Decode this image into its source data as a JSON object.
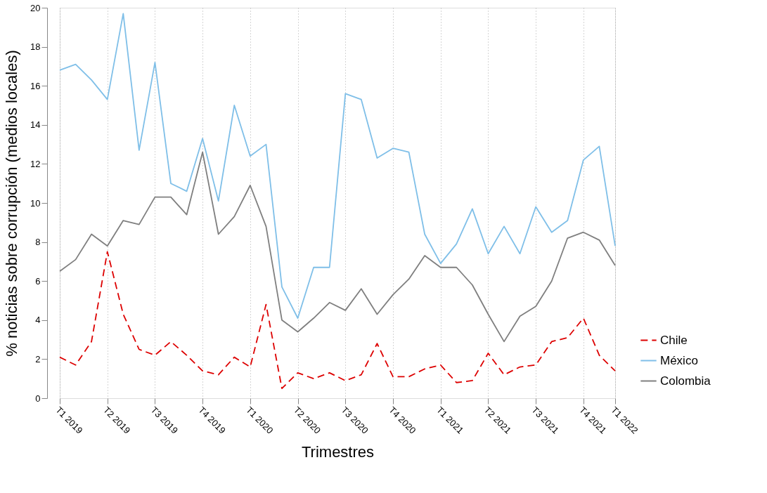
{
  "chart_data": {
    "type": "line",
    "xlabel": "Trimestres",
    "ylabel": "% noticias sobre corrupción (medios locales)",
    "categories": [
      "T1 2019",
      null,
      null,
      "T2 2019",
      null,
      null,
      "T3 2019",
      null,
      null,
      "T4 2019",
      null,
      null,
      "T1 2020",
      null,
      null,
      "T2 2020",
      null,
      null,
      "T3 2020",
      null,
      null,
      "T4 2020",
      null,
      null,
      "T1 2021",
      null,
      null,
      "T2 2021",
      null,
      null,
      "T3 2021",
      null,
      null,
      "T4 2021",
      null,
      "T1 2022"
    ],
    "series": [
      {
        "name": "Chile",
        "color": "#dd0000",
        "line_style": "dashed",
        "values": [
          2.1,
          1.7,
          2.9,
          7.5,
          4.3,
          2.5,
          2.2,
          2.9,
          2.2,
          1.4,
          1.2,
          2.1,
          1.6,
          4.8,
          0.5,
          1.3,
          1.0,
          1.3,
          0.9,
          1.2,
          2.8,
          1.1,
          1.1,
          1.5,
          1.7,
          0.8,
          0.9,
          2.3,
          1.2,
          1.6,
          1.7,
          2.9,
          3.1,
          4.1,
          2.2,
          1.4
        ]
      },
      {
        "name": "México",
        "color": "#7fbfe8",
        "line_style": "solid",
        "values": [
          16.8,
          17.1,
          16.3,
          15.3,
          19.7,
          12.7,
          17.2,
          11.0,
          10.6,
          13.3,
          10.1,
          15.0,
          12.4,
          13.0,
          5.7,
          4.1,
          6.7,
          6.7,
          15.6,
          15.3,
          12.3,
          12.8,
          12.6,
          8.4,
          6.9,
          7.9,
          9.7,
          7.4,
          8.8,
          7.4,
          9.8,
          8.5,
          9.1,
          12.2,
          12.9,
          7.8
        ]
      },
      {
        "name": "Colombia",
        "color": "#7f7f7f",
        "line_style": "solid",
        "values": [
          6.5,
          7.1,
          8.4,
          7.8,
          9.1,
          8.9,
          10.3,
          10.3,
          9.4,
          12.6,
          8.4,
          9.3,
          10.9,
          8.8,
          4.0,
          3.4,
          4.1,
          4.9,
          4.5,
          5.6,
          4.3,
          5.3,
          6.1,
          7.3,
          6.7,
          6.7,
          5.8,
          4.3,
          2.9,
          4.2,
          4.7,
          6.0,
          8.2,
          8.5,
          8.1,
          6.8
        ]
      }
    ],
    "ylim": [
      0,
      20
    ],
    "yticks": [
      0,
      2,
      4,
      6,
      8,
      10,
      12,
      14,
      16,
      18,
      20
    ],
    "grid": "x",
    "legend": "right"
  }
}
